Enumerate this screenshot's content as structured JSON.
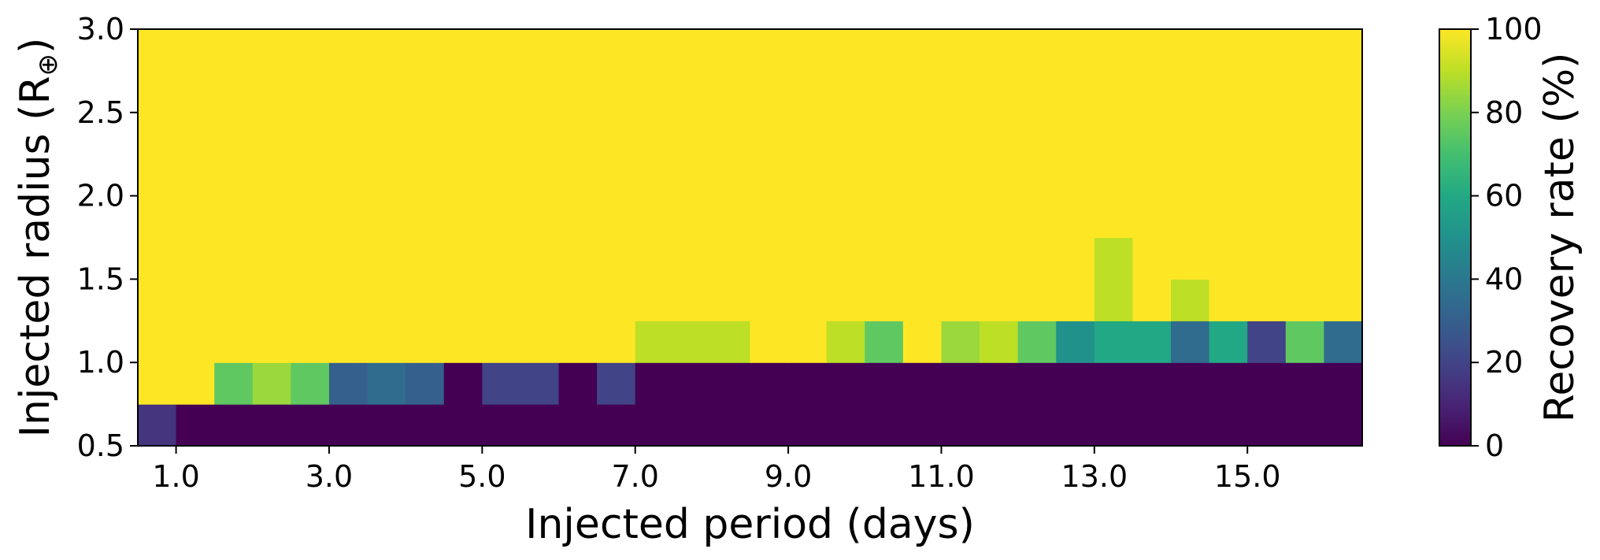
{
  "chart_data": {
    "type": "heatmap",
    "xlabel": "Injected period (days)",
    "ylabel": "Injected radius (R",
    "ylabel_sub": "⊕",
    "ylabel_close": ")",
    "colorbar_label": "Recovery rate (%)",
    "xlim": [
      0.5,
      16.5
    ],
    "ylim": [
      0.5,
      3.0
    ],
    "x_ticks": [
      1.0,
      3.0,
      5.0,
      7.0,
      9.0,
      11.0,
      13.0,
      15.0
    ],
    "x_tick_labels": [
      "1.0",
      "3.0",
      "5.0",
      "7.0",
      "9.0",
      "11.0",
      "13.0",
      "15.0"
    ],
    "y_ticks": [
      0.5,
      1.0,
      1.5,
      2.0,
      2.5,
      3.0
    ],
    "y_tick_labels": [
      "0.5",
      "1.0",
      "1.5",
      "2.0",
      "2.5",
      "3.0"
    ],
    "colorbar_ticks": [
      0,
      20,
      40,
      60,
      80,
      100
    ],
    "colorbar_tick_labels": [
      "0",
      "20",
      "40",
      "60",
      "80",
      "100"
    ],
    "colormap": "viridis",
    "clim": [
      0,
      100
    ],
    "x_bin_edges": [
      0.5,
      1.0,
      1.5,
      2.0,
      2.5,
      3.0,
      3.5,
      4.0,
      4.5,
      5.0,
      5.5,
      6.0,
      6.5,
      7.0,
      7.5,
      8.0,
      8.5,
      9.0,
      9.5,
      10.0,
      10.5,
      11.0,
      11.5,
      12.0,
      12.5,
      13.0,
      13.5,
      14.0,
      14.5,
      15.0,
      15.5,
      16.0,
      16.5
    ],
    "y_bin_edges": [
      0.5,
      0.75,
      1.0,
      1.25,
      1.5,
      1.75,
      2.0,
      2.25,
      2.5,
      2.75,
      3.0
    ],
    "values": [
      [
        15,
        0,
        0,
        0,
        0,
        0,
        0,
        0,
        0,
        0,
        0,
        0,
        0,
        0,
        0,
        0,
        0,
        0,
        0,
        0,
        0,
        0,
        0,
        0,
        0,
        0,
        0,
        0,
        0,
        0,
        0,
        0
      ],
      [
        100,
        100,
        75,
        85,
        75,
        30,
        35,
        30,
        0,
        20,
        20,
        0,
        20,
        0,
        0,
        0,
        0,
        0,
        0,
        0,
        0,
        0,
        0,
        0,
        0,
        0,
        0,
        0,
        0,
        0,
        0,
        0
      ],
      [
        100,
        100,
        100,
        100,
        100,
        100,
        100,
        100,
        100,
        100,
        100,
        100,
        100,
        90,
        90,
        90,
        100,
        100,
        90,
        75,
        100,
        85,
        90,
        75,
        50,
        60,
        60,
        35,
        60,
        20,
        75,
        35
      ],
      [
        100,
        100,
        100,
        100,
        100,
        100,
        100,
        100,
        100,
        100,
        100,
        100,
        100,
        100,
        100,
        100,
        100,
        100,
        100,
        100,
        100,
        100,
        100,
        100,
        100,
        90,
        100,
        90,
        100,
        100,
        100,
        100
      ],
      [
        100,
        100,
        100,
        100,
        100,
        100,
        100,
        100,
        100,
        100,
        100,
        100,
        100,
        100,
        100,
        100,
        100,
        100,
        100,
        100,
        100,
        100,
        100,
        100,
        100,
        90,
        100,
        100,
        100,
        100,
        100,
        100
      ],
      [
        100,
        100,
        100,
        100,
        100,
        100,
        100,
        100,
        100,
        100,
        100,
        100,
        100,
        100,
        100,
        100,
        100,
        100,
        100,
        100,
        100,
        100,
        100,
        100,
        100,
        100,
        100,
        100,
        100,
        100,
        100,
        100
      ],
      [
        100,
        100,
        100,
        100,
        100,
        100,
        100,
        100,
        100,
        100,
        100,
        100,
        100,
        100,
        100,
        100,
        100,
        100,
        100,
        100,
        100,
        100,
        100,
        100,
        100,
        100,
        100,
        100,
        100,
        100,
        100,
        100
      ],
      [
        100,
        100,
        100,
        100,
        100,
        100,
        100,
        100,
        100,
        100,
        100,
        100,
        100,
        100,
        100,
        100,
        100,
        100,
        100,
        100,
        100,
        100,
        100,
        100,
        100,
        100,
        100,
        100,
        100,
        100,
        100,
        100
      ],
      [
        100,
        100,
        100,
        100,
        100,
        100,
        100,
        100,
        100,
        100,
        100,
        100,
        100,
        100,
        100,
        100,
        100,
        100,
        100,
        100,
        100,
        100,
        100,
        100,
        100,
        100,
        100,
        100,
        100,
        100,
        100,
        100
      ],
      [
        100,
        100,
        100,
        100,
        100,
        100,
        100,
        100,
        100,
        100,
        100,
        100,
        100,
        100,
        100,
        100,
        100,
        100,
        100,
        100,
        100,
        100,
        100,
        100,
        100,
        100,
        100,
        100,
        100,
        100,
        100,
        100
      ]
    ]
  }
}
